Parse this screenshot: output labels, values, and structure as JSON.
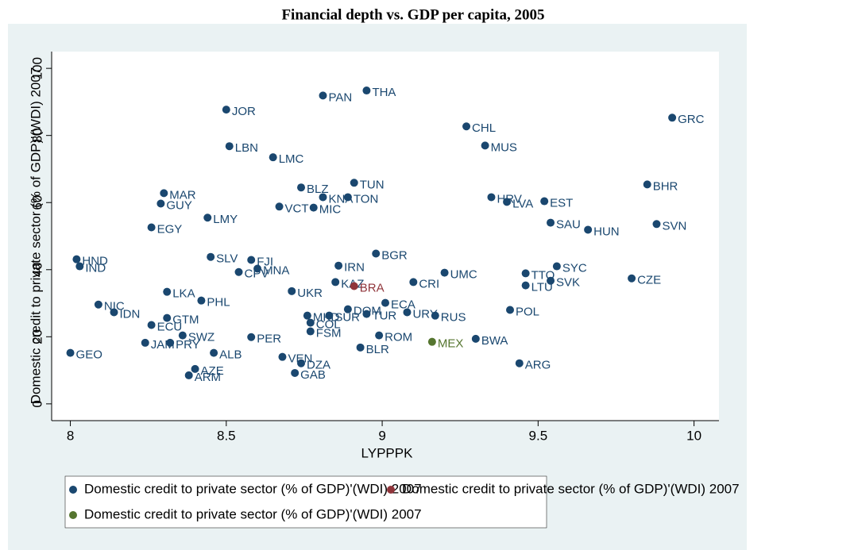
{
  "chart_data": {
    "type": "scatter",
    "title": "Financial depth vs. GDP per capita, 2005",
    "x_label": "LYPPPK",
    "y_label": "Domestic credit to private sector (% of GDP)'(WDI) 2007",
    "xlim": [
      7.94,
      10.08
    ],
    "ylim": [
      -5,
      105
    ],
    "xticks": [
      8,
      8.5,
      9,
      9.5,
      10
    ],
    "yticks": [
      0,
      20,
      40,
      60,
      80,
      100
    ],
    "series": [
      {
        "name": "Domestic credit to private sector (% of GDP)'(WDI) 2007",
        "color": "#1a476f",
        "labels": [
          "HND",
          "IND",
          "NIC",
          "IDN",
          "GEO",
          "ECU",
          "EGY",
          "GUY",
          "MAR",
          "LKA",
          "GTM",
          "JAM",
          "PRY",
          "SWZ",
          "ARM",
          "AZE",
          "ALB",
          "PHL",
          "LMY",
          "SLV",
          "JOR",
          "LBN",
          "FJI",
          "PER",
          "CPV",
          "MNA",
          "LMC",
          "VCT",
          "MIC",
          "BLZ",
          "UKR",
          "VEN",
          "DZA",
          "GAB",
          "MKD",
          "COL",
          "FSM",
          "DOM",
          "SUR",
          "TUR",
          "PAN",
          "THA",
          "KNA",
          "TON",
          "TUN",
          "IRN",
          "KAZ",
          "BGR",
          "ECA",
          "URY",
          "ROM",
          "BLR",
          "CRI",
          "UMC",
          "RUS",
          "BWA",
          "CHL",
          "MUS",
          "HRV",
          "LVA",
          "EST",
          "SAU",
          "HUN",
          "LTU",
          "TTO",
          "POL",
          "ARG",
          "SYC",
          "SVK",
          "CZE",
          "BHR",
          "SVN",
          "GRC"
        ],
        "x": [
          8.02,
          8.03,
          8.09,
          8.14,
          8.0,
          8.26,
          8.26,
          8.29,
          8.3,
          8.31,
          8.31,
          8.24,
          8.32,
          8.36,
          8.38,
          8.4,
          8.46,
          8.42,
          8.44,
          8.45,
          8.5,
          8.51,
          8.58,
          8.58,
          8.54,
          8.6,
          8.65,
          8.67,
          8.78,
          8.74,
          8.71,
          8.68,
          8.74,
          8.72,
          8.76,
          8.77,
          8.77,
          8.89,
          8.83,
          8.95,
          8.81,
          8.95,
          8.81,
          8.89,
          8.91,
          8.86,
          8.85,
          8.98,
          9.01,
          9.08,
          8.99,
          8.93,
          9.1,
          9.2,
          9.17,
          9.3,
          9.27,
          9.33,
          9.35,
          9.4,
          9.52,
          9.54,
          9.66,
          9.46,
          9.46,
          9.41,
          9.44,
          9.56,
          9.54,
          9.8,
          9.85,
          9.88,
          9.93
        ],
        "values": [
          43.1,
          41.0,
          29.6,
          27.3,
          15.2,
          23.5,
          52.6,
          59.7,
          62.8,
          33.4,
          25.6,
          18.2,
          18.2,
          20.4,
          8.5,
          10.4,
          15.2,
          30.8,
          55.5,
          43.8,
          87.7,
          76.8,
          42.9,
          19.9,
          39.3,
          40.3,
          73.5,
          58.8,
          58.5,
          64.5,
          33.6,
          14.0,
          12.1,
          9.2,
          26.3,
          24.2,
          21.6,
          28.2,
          26.3,
          26.8,
          91.9,
          93.4,
          61.6,
          61.6,
          65.9,
          41.2,
          36.3,
          44.8,
          30.1,
          27.3,
          20.4,
          16.8,
          36.3,
          39.1,
          26.3,
          19.4,
          82.7,
          77.0,
          61.6,
          60.2,
          60.4,
          54.0,
          51.9,
          35.3,
          38.9,
          28.0,
          12.1,
          41.0,
          36.7,
          37.4,
          65.4,
          53.6,
          85.3
        ]
      },
      {
        "name": "Domestic credit to private sector (% of GDP)'(WDI) 2007",
        "color": "#90353b",
        "labels": [
          "BRA"
        ],
        "x": [
          8.91
        ],
        "values": [
          35.1
        ]
      },
      {
        "name": "Domestic credit to private sector (% of GDP)'(WDI) 2007",
        "color": "#55752f",
        "labels": [
          "MEX"
        ],
        "x": [
          9.16
        ],
        "values": [
          18.5
        ]
      }
    ]
  }
}
